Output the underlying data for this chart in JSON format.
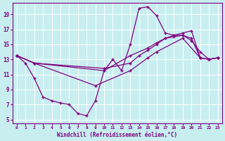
{
  "xlabel": "Windchill (Refroidissement éolien,°C)",
  "background_color": "#c8eef0",
  "line_color": "#800080",
  "xlim": [
    -0.5,
    23.5
  ],
  "ylim": [
    4.5,
    20.5
  ],
  "yticks": [
    5,
    7,
    9,
    11,
    13,
    15,
    17,
    19
  ],
  "xticks": [
    0,
    1,
    2,
    3,
    4,
    5,
    6,
    7,
    8,
    9,
    10,
    11,
    12,
    13,
    14,
    15,
    16,
    17,
    18,
    19,
    20,
    21,
    22,
    23
  ],
  "line1_x": [
    0,
    1,
    2,
    3,
    4,
    5,
    6,
    7,
    8,
    9,
    10,
    11,
    12,
    13,
    14,
    15,
    16,
    17,
    18,
    19,
    20,
    21,
    22,
    23
  ],
  "line1_y": [
    13.5,
    12.5,
    10.5,
    8.0,
    7.5,
    7.2,
    7.0,
    5.8,
    5.5,
    7.5,
    11.5,
    13.0,
    11.5,
    15.0,
    19.8,
    20.0,
    18.8,
    16.5,
    16.2,
    16.2,
    15.5,
    14.0,
    13.0,
    13.2
  ],
  "line2_x": [
    0,
    2,
    10,
    13,
    15,
    16,
    17,
    18,
    19,
    20,
    21,
    22,
    23
  ],
  "line2_y": [
    13.5,
    12.5,
    11.5,
    13.5,
    14.5,
    15.2,
    15.8,
    16.2,
    16.5,
    16.8,
    13.2,
    13.0,
    13.2
  ],
  "line3_x": [
    0,
    2,
    10,
    13,
    14,
    15,
    16,
    17,
    18,
    19,
    20,
    21,
    22,
    23
  ],
  "line3_y": [
    13.5,
    12.5,
    11.8,
    12.5,
    13.5,
    14.2,
    15.0,
    15.8,
    16.0,
    16.2,
    15.8,
    13.2,
    13.0,
    13.2
  ],
  "line4_x": [
    0,
    2,
    9,
    13,
    15,
    16,
    19,
    21,
    22,
    23
  ],
  "line4_y": [
    13.5,
    12.5,
    9.5,
    11.5,
    13.2,
    14.0,
    15.8,
    13.2,
    13.0,
    13.2
  ]
}
